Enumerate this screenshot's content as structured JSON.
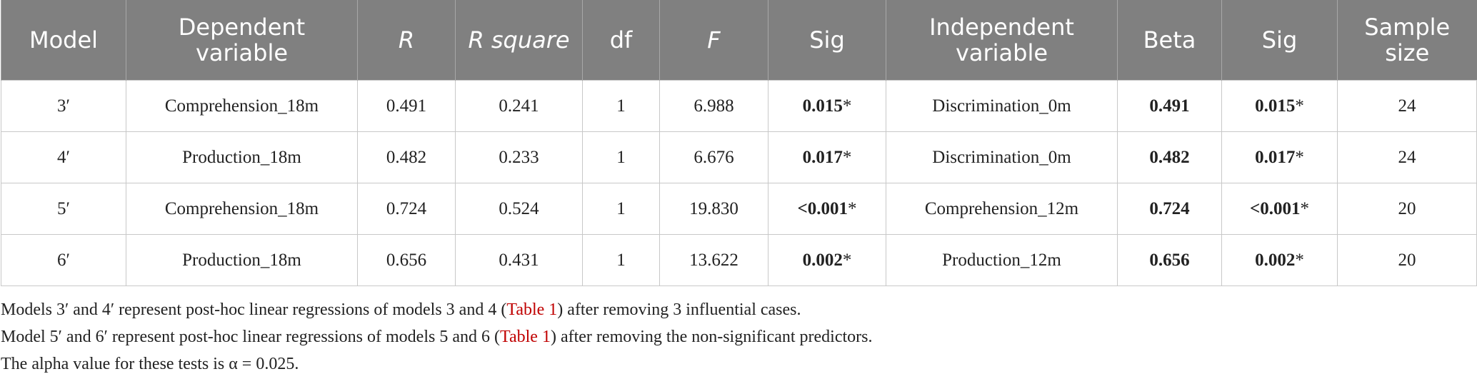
{
  "table": {
    "header": [
      "Model",
      "Dependent variable",
      "R",
      "R square",
      "df",
      "F",
      "Sig",
      "Independent variable",
      "Beta",
      "Sig",
      "Sample size"
    ],
    "rows": [
      [
        "3′",
        "Comprehension_18m",
        "0.491",
        "0.241",
        "1",
        "6.988",
        "0.015*",
        "Discrimination_0m",
        "0.491",
        "0.015*",
        "24"
      ],
      [
        "4′",
        "Production_18m",
        "0.482",
        "0.233",
        "1",
        "6.676",
        "0.017*",
        "Discrimination_0m",
        "0.482",
        "0.017*",
        "24"
      ],
      [
        "5′",
        "Comprehension_18m",
        "0.724",
        "0.524",
        "1",
        "19.830",
        "<0.001*",
        "Comprehension_12m",
        "0.724",
        "<0.001*",
        "20"
      ],
      [
        "6′",
        "Production_18m",
        "0.656",
        "0.431",
        "1",
        "13.622",
        "0.002*",
        "Production_12m",
        "0.656",
        "0.002*",
        "20"
      ]
    ]
  },
  "notes": [
    [
      "Models 3′ and 4′ represent post-hoc linear regressions of models 3 and 4 (",
      "Table 1",
      ") after removing 3 influential cases."
    ],
    [
      "Model 5′ and 6′ represent post-hoc linear regressions of models 5 and 6 (",
      "Table 1",
      ") after removing the non-significant predictors."
    ],
    [
      "The alpha value for these tests is α = 0.025."
    ]
  ]
}
